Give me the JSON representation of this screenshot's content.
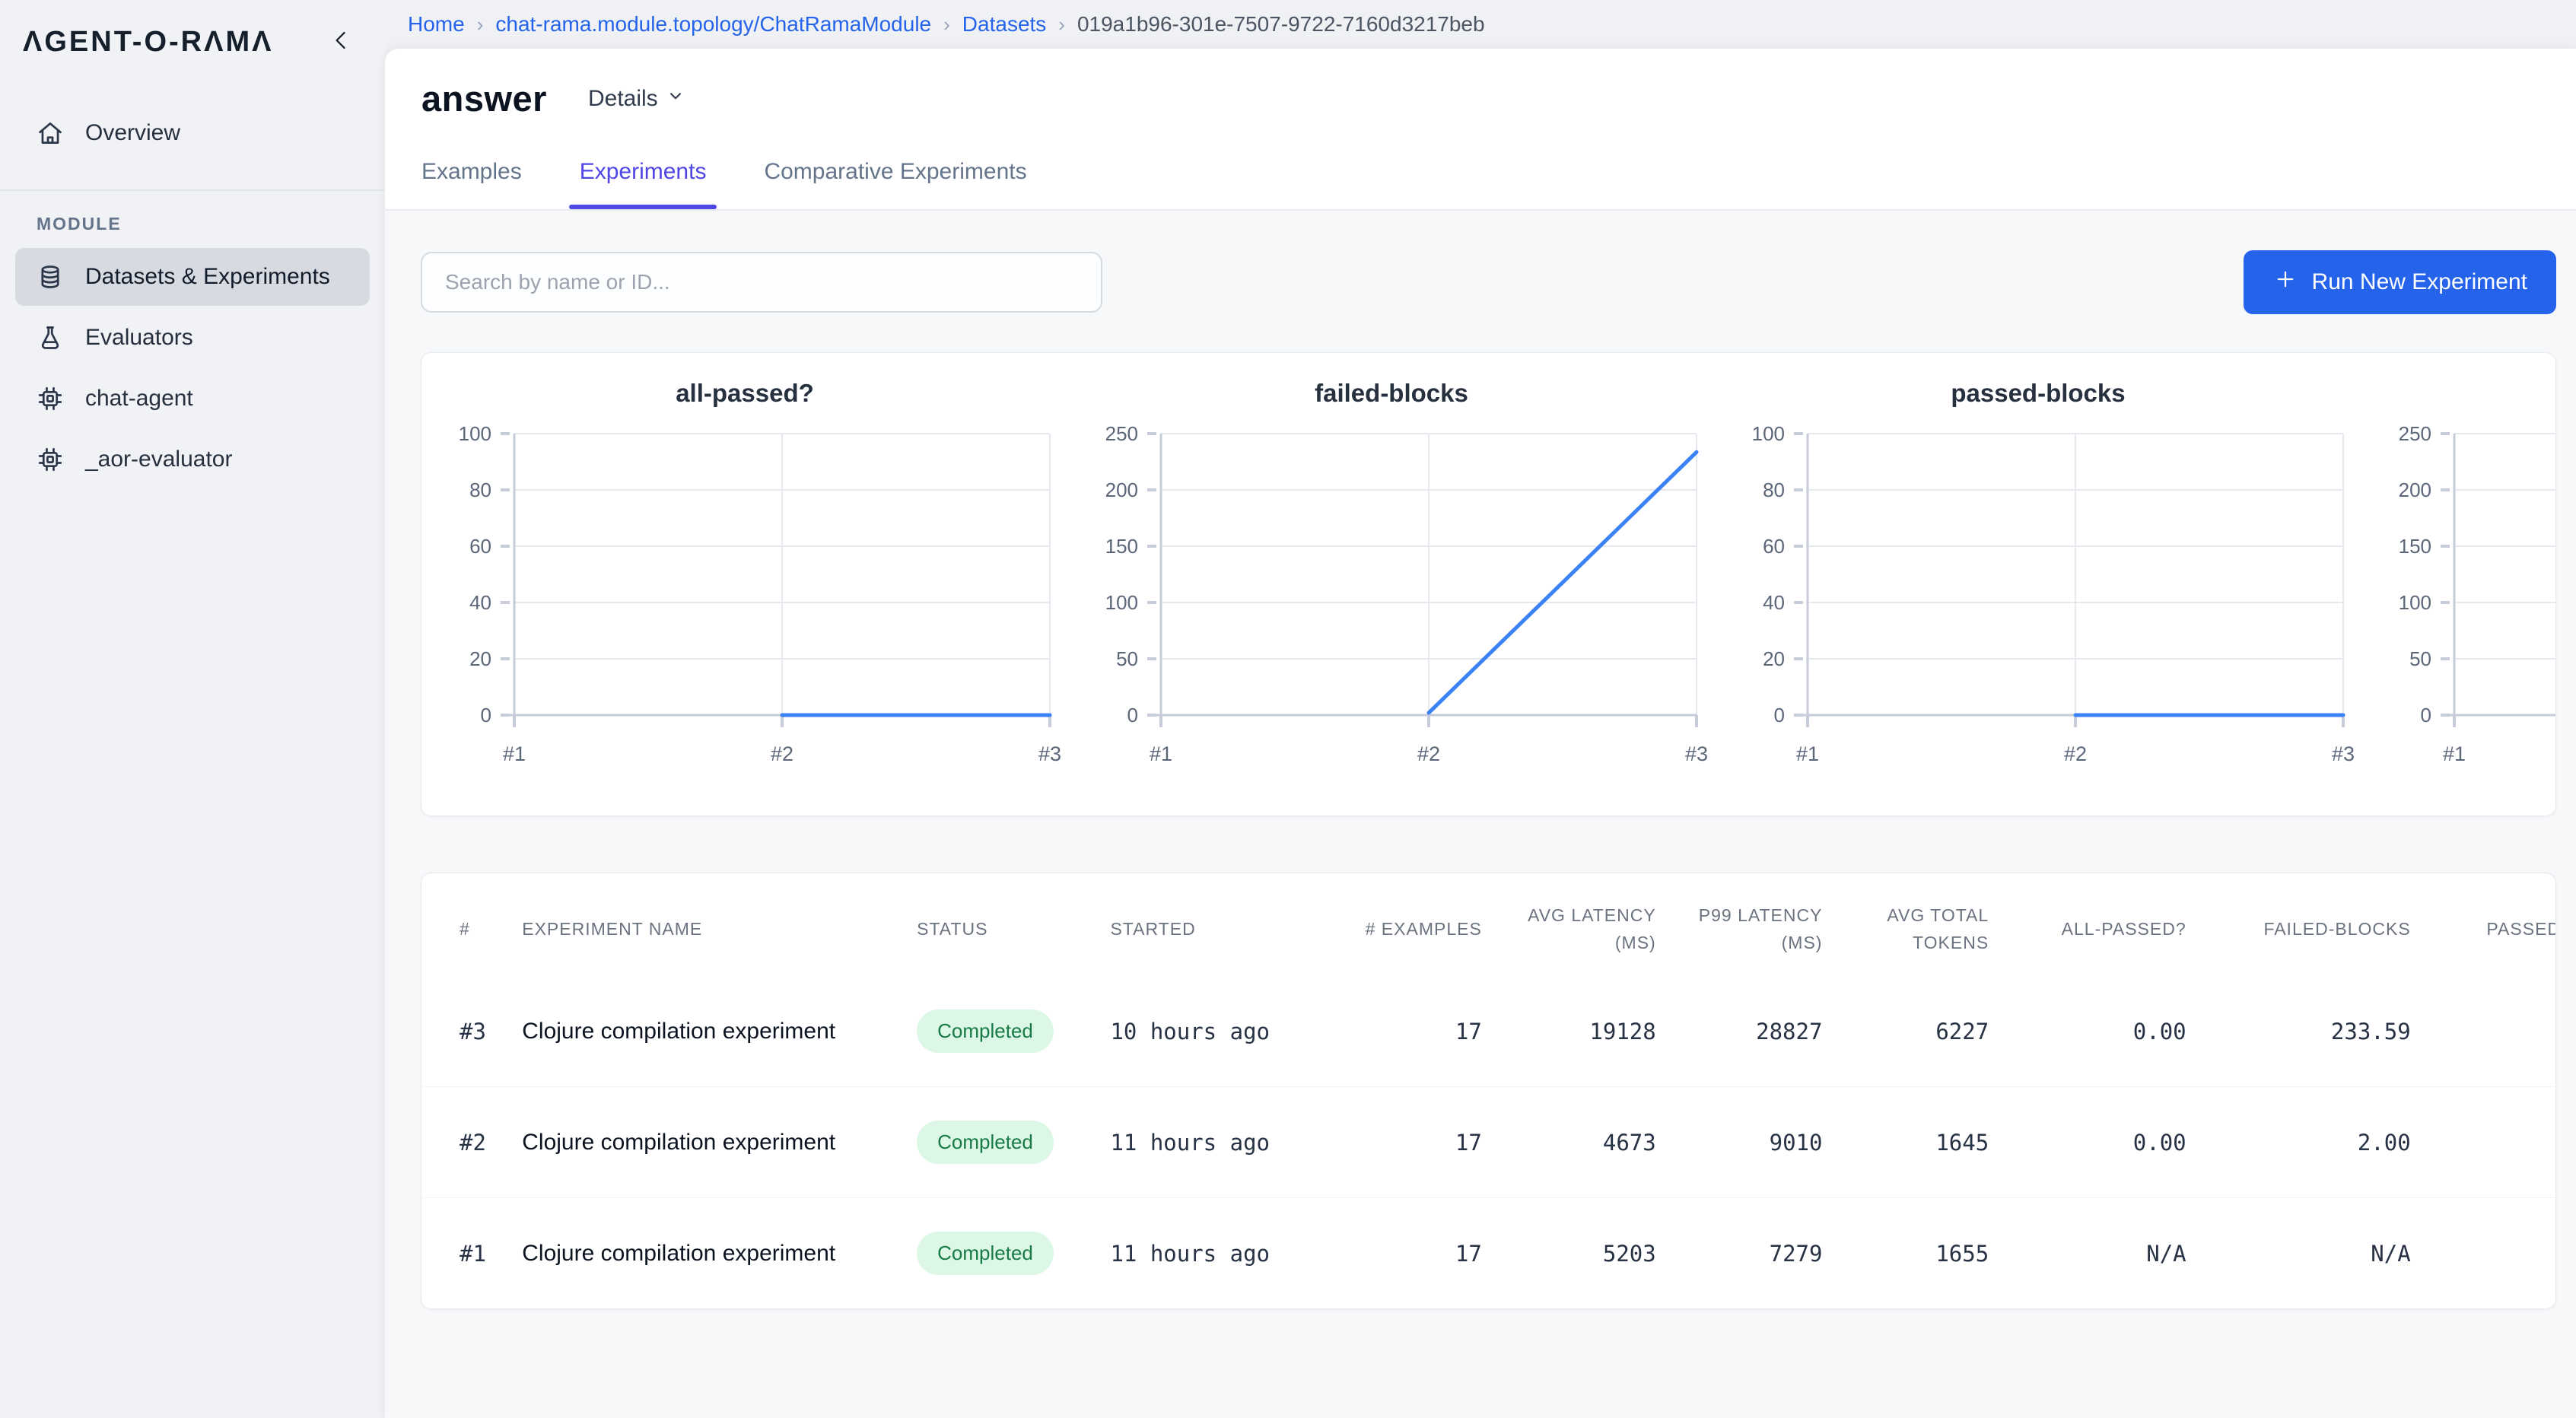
{
  "sidebar": {
    "logo": "ΛGENT-O-RΛMΛ",
    "section_label": "MODULE",
    "primary_items": [
      {
        "label": "Overview",
        "icon": "home",
        "active": false
      }
    ],
    "module_items": [
      {
        "label": "Datasets & Experiments",
        "icon": "database",
        "active": true
      },
      {
        "label": "Evaluators",
        "icon": "flask",
        "active": false
      },
      {
        "label": "chat-agent",
        "icon": "chip",
        "active": false
      },
      {
        "label": "_aor-evaluator",
        "icon": "chip",
        "active": false
      }
    ]
  },
  "breadcrumb": {
    "separator": "›",
    "items": [
      {
        "label": "Home",
        "link": true
      },
      {
        "label": "chat-rama.module.topology/ChatRamaModule",
        "link": true
      },
      {
        "label": "Datasets",
        "link": true
      },
      {
        "label": "019a1b96-301e-7507-9722-7160d3217beb",
        "link": false
      }
    ]
  },
  "header": {
    "title": "answer",
    "details_label": "Details",
    "tabs": [
      {
        "label": "Examples",
        "active": false
      },
      {
        "label": "Experiments",
        "active": true
      },
      {
        "label": "Comparative Experiments",
        "active": false
      }
    ]
  },
  "toolbar": {
    "search_placeholder": "Search by name or ID...",
    "run_button_label": "Run New Experiment"
  },
  "colors": {
    "accent_blue": "#2563eb",
    "active_tab_indigo": "#4f46e5",
    "chart_line_blue": "#3b82f6",
    "status_completed_bg": "#dcf7e6",
    "status_completed_text": "#187a45",
    "sidebar_bg": "#f0f2f5",
    "content_bg": "#f7f8fa"
  },
  "chart_data": [
    {
      "type": "line",
      "title": "all-passed?",
      "categories": [
        "#1",
        "#2",
        "#3"
      ],
      "values": [
        null,
        0,
        0
      ],
      "ylim": [
        0,
        100
      ],
      "yticks": [
        0,
        20,
        40,
        60,
        80,
        100
      ],
      "line_color": "#3b82f6",
      "grid": true,
      "legend": "none"
    },
    {
      "type": "line",
      "title": "failed-blocks",
      "categories": [
        "#1",
        "#2",
        "#3"
      ],
      "values": [
        null,
        2,
        233.59
      ],
      "ylim": [
        0,
        250
      ],
      "yticks": [
        0,
        50,
        100,
        150,
        200,
        250
      ],
      "line_color": "#3b82f6",
      "grid": true,
      "legend": "none"
    },
    {
      "type": "line",
      "title": "passed-blocks",
      "categories": [
        "#1",
        "#2",
        "#3"
      ],
      "values": [
        null,
        0,
        0
      ],
      "ylim": [
        0,
        100
      ],
      "yticks": [
        0,
        20,
        40,
        60,
        80,
        100
      ],
      "line_color": "#3b82f6",
      "grid": true,
      "legend": "none"
    },
    {
      "type": "line",
      "title": "",
      "categories": [
        "#1"
      ],
      "values": [
        null
      ],
      "ylim": [
        0,
        250
      ],
      "yticks": [
        0,
        50,
        100,
        150,
        200,
        250
      ],
      "line_color": "#3b82f6",
      "grid": true,
      "legend": "none",
      "clipped": true
    }
  ],
  "table": {
    "columns": [
      {
        "label": "#",
        "align": "left"
      },
      {
        "label": "EXPERIMENT NAME",
        "align": "left"
      },
      {
        "label": "STATUS",
        "align": "left"
      },
      {
        "label": "STARTED",
        "align": "left"
      },
      {
        "label": "# EXAMPLES",
        "align": "right"
      },
      {
        "label": "AVG LATENCY (MS)",
        "align": "right"
      },
      {
        "label": "P99 LATENCY (MS)",
        "align": "right"
      },
      {
        "label": "AVG TOTAL TOKENS",
        "align": "right"
      },
      {
        "label": "ALL-PASSED?",
        "align": "right"
      },
      {
        "label": "FAILED-BLOCKS",
        "align": "right"
      },
      {
        "label": "PASSED-BLOCKS",
        "align": "right"
      }
    ],
    "rows": [
      {
        "number": "#3",
        "name": "Clojure compilation experiment",
        "status": "Completed",
        "started": "10 hours ago",
        "examples": "17",
        "avg_latency": "19128",
        "p99_latency": "28827",
        "avg_tokens": "6227",
        "all_passed": "0.00",
        "failed_blocks": "233.59",
        "passed_blocks": ""
      },
      {
        "number": "#2",
        "name": "Clojure compilation experiment",
        "status": "Completed",
        "started": "11 hours ago",
        "examples": "17",
        "avg_latency": "4673",
        "p99_latency": "9010",
        "avg_tokens": "1645",
        "all_passed": "0.00",
        "failed_blocks": "2.00",
        "passed_blocks": ""
      },
      {
        "number": "#1",
        "name": "Clojure compilation experiment",
        "status": "Completed",
        "started": "11 hours ago",
        "examples": "17",
        "avg_latency": "5203",
        "p99_latency": "7279",
        "avg_tokens": "1655",
        "all_passed": "N/A",
        "failed_blocks": "N/A",
        "passed_blocks": ""
      }
    ]
  }
}
